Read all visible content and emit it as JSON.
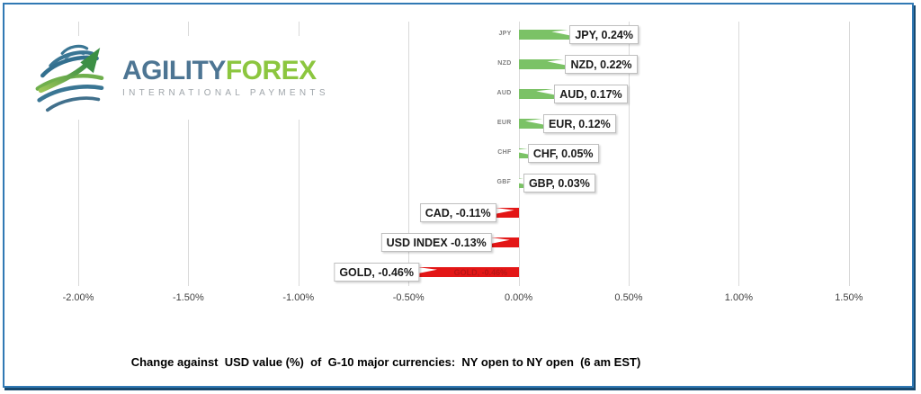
{
  "frame": {
    "border_color": "#3179B4",
    "shadow_color": "#17496F",
    "background": "#FFFFFF"
  },
  "logo": {
    "brand_primary": "AGILITY",
    "brand_secondary": "FOREX",
    "tagline": "INTERNATIONAL PAYMENTS",
    "primary_color": "#4D7593",
    "secondary_color": "#8CC63F",
    "tagline_color": "#9FA5AA"
  },
  "caption": "Change against  USD value (%)  of  G-10 major currencies:  NY open to NY open  (6 am EST)",
  "chart_data": {
    "type": "bar",
    "orientation": "horizontal",
    "title": "Change against USD value (%) of G-10 major currencies: NY open to NY open (6 am EST)",
    "categories": [
      "JPY",
      "NZD",
      "AUD",
      "EUR",
      "CHF",
      "GBP",
      "CAD",
      "USD INDEX",
      "GOLD"
    ],
    "values": [
      0.24,
      0.22,
      0.17,
      0.12,
      0.05,
      0.03,
      -0.11,
      -0.13,
      -0.46
    ],
    "bar_labels": [
      "JPY, 0.24%",
      "NZD, 0.22%",
      "AUD, 0.17%",
      "EUR, 0.12%",
      "CHF, 0.05%",
      "GBP, 0.03%",
      "CAD, -0.11%",
      "USD INDEX -0.13%",
      "GOLD, -0.46%"
    ],
    "x_ticks": [
      "-2.00%",
      "-1.50%",
      "-1.00%",
      "-0.50%",
      "0.00%",
      "0.50%",
      "1.00%",
      "1.50%"
    ],
    "x_tick_values": [
      -2.0,
      -1.5,
      -1.0,
      -0.5,
      0.0,
      0.5,
      1.0,
      1.5
    ],
    "xlim": [
      -2.0,
      1.5
    ],
    "grid": true,
    "legend": "none",
    "positive_color": "#7BC266",
    "negative_color": "#E31616",
    "grid_color": "#D9D9D9",
    "axis_label_color": "#3F3F3F",
    "category_label_color": "#7F7F7F",
    "ghost_label": "GOLD, -0.46%"
  }
}
